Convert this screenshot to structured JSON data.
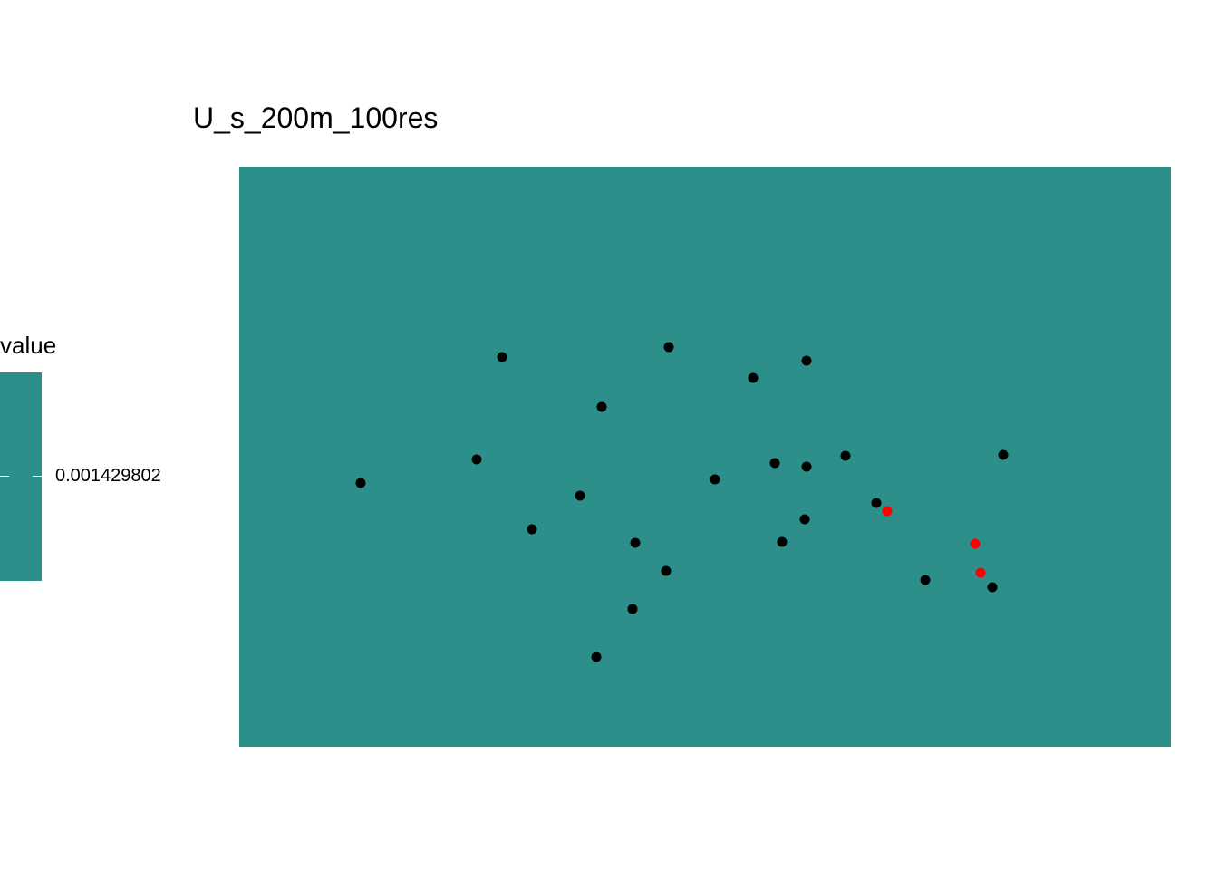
{
  "chart_data": {
    "type": "heatmap",
    "title": "U_s_200m_100res",
    "xlabel": "",
    "ylabel": "",
    "fill_color": "#2d8f8a",
    "legend": {
      "title": "value",
      "placement": "left",
      "ticks": [
        "0.001429802"
      ],
      "tick_values": [
        0.001429802
      ]
    },
    "xlim": [
      0,
      1028
    ],
    "ylim": [
      0,
      640
    ],
    "points": {
      "black": {
        "color": "#000000",
        "x": [
          134,
          262,
          290,
          323,
          376,
          394,
          400,
          434,
          437,
          471,
          474,
          525,
          567,
          591,
          599,
          624,
          626,
          626,
          669,
          703,
          757,
          831,
          843
        ],
        "y": [
          349,
          323,
          210,
          400,
          363,
          541,
          265,
          488,
          415,
          446,
          199,
          345,
          233,
          327,
          414,
          389,
          331,
          214,
          319,
          371,
          456,
          464,
          318
        ]
      },
      "red": {
        "color": "#ff0000",
        "x": [
          715,
          812,
          818
        ],
        "y": [
          380,
          416,
          448
        ]
      }
    }
  }
}
